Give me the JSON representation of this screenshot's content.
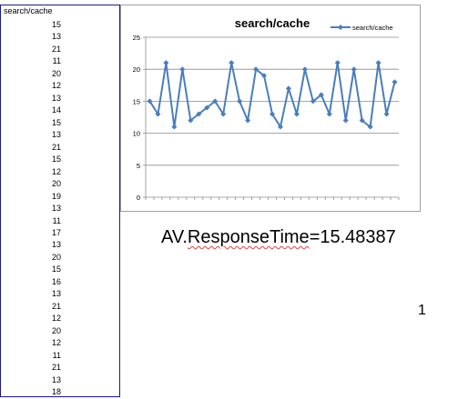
{
  "column": {
    "header": "search/cache",
    "values": [
      "15",
      "13",
      "21",
      "11",
      "20",
      "12",
      "13",
      "14",
      "15",
      "13",
      "21",
      "15",
      "12",
      "20",
      "19",
      "13",
      "11",
      "17",
      "13",
      "20",
      "15",
      "16",
      "13",
      "21",
      "12",
      "20",
      "12",
      "11",
      "21",
      "13",
      "18"
    ]
  },
  "chart_data": {
    "type": "line",
    "title": "search/cache",
    "xlabel": "",
    "ylabel": "",
    "ylim": [
      0,
      25
    ],
    "yticks": [
      "0",
      "5",
      "10",
      "15",
      "20",
      "25"
    ],
    "x_count": 31,
    "grid": "horizontal",
    "legend": "top-right",
    "series": [
      {
        "name": "search/cache",
        "color": "#4a7ebb",
        "values": [
          15,
          13,
          21,
          11,
          20,
          12,
          13,
          14,
          15,
          13,
          21,
          15,
          12,
          20,
          19,
          13,
          11,
          17,
          13,
          20,
          15,
          16,
          13,
          21,
          12,
          20,
          12,
          11,
          21,
          13,
          18
        ]
      }
    ]
  },
  "formula": {
    "prefix": "AV.",
    "squiggle": "ResponseTime",
    "suffix": "=15.48387"
  },
  "page_marker": "1"
}
